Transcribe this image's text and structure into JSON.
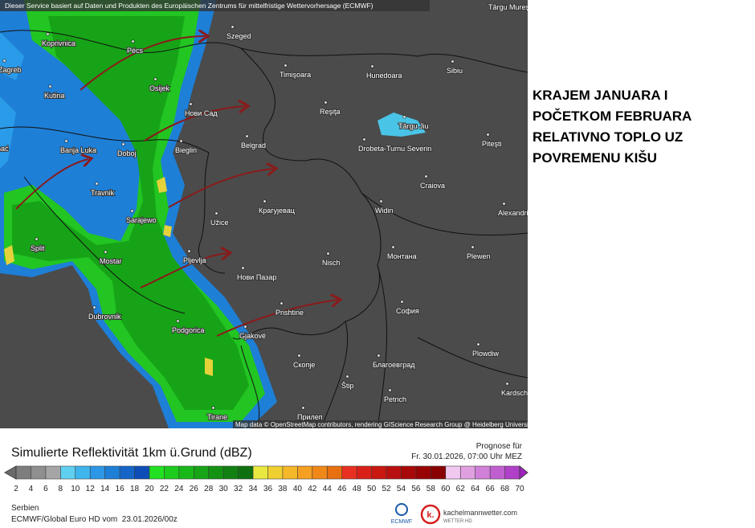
{
  "map": {
    "attribution_top": "Dieser Service basiert auf Daten und Produkten des Europäischen Zentrums für mittelfristige Wettervorhersage (ECMWF)",
    "attribution_bottom": "Map data © OpenStreetMap contributors, rendering GIScience Research Group @ Heidelberg University",
    "cities": [
      "Târgu Mureş",
      "Koprivnica",
      "Pécs",
      "Szeged",
      "Zagreb",
      "Timişoara",
      "Hunedoara",
      "Sibiu",
      "Osijek",
      "Kutina",
      "Нови Сад",
      "Reşiţa",
      "Târgu Jiu",
      "Bihać",
      "Banja Luka",
      "Doboj",
      "Bieglin",
      "Belgrad",
      "Drobeta-Turnu Severin",
      "Piteşti",
      "Travnik",
      "Craiova",
      "Sarajewo",
      "Užice",
      "Крагујевац",
      "Widin",
      "Alexandria",
      "Split",
      "Mostar",
      "Pljevlja",
      "Nisch",
      "Монтана",
      "Plewen",
      "Нови Пазар",
      "Dubrovnik",
      "Prishtine",
      "София",
      "Podgorica",
      "Gjakovë",
      "Plowdiw",
      "Скопје",
      "Благоевград",
      "Štip",
      "Petrich",
      "Kardschali",
      "Tirane",
      "Прилеп"
    ]
  },
  "annotation": [
    "KRAJEM JANUARA I",
    "POČETKOM FEBRUARA",
    "RELATIVNO TOPLO UZ",
    "POVREMENU KIŠU"
  ],
  "legend": {
    "title": "Simulierte Reflektivität 1km ü.Grund (dBZ)",
    "forecast_label": "Prognose für",
    "forecast_time": "Fr. 30.01.2026, 07:00 Uhr MEZ",
    "ticks": [
      2,
      4,
      6,
      8,
      10,
      12,
      14,
      16,
      18,
      20,
      22,
      24,
      26,
      28,
      30,
      32,
      34,
      36,
      38,
      40,
      42,
      44,
      46,
      48,
      50,
      52,
      54,
      56,
      58,
      60,
      62,
      64,
      66,
      68,
      70
    ]
  },
  "footer": {
    "region": "Serbien",
    "model": "ECMWF/Global Euro HD vom  23.01.2026/00z",
    "ecmwf": "ECMWF",
    "site": "kachelmannwetter.com",
    "site_sub": "WETTER HD",
    "site_logo": "k."
  }
}
